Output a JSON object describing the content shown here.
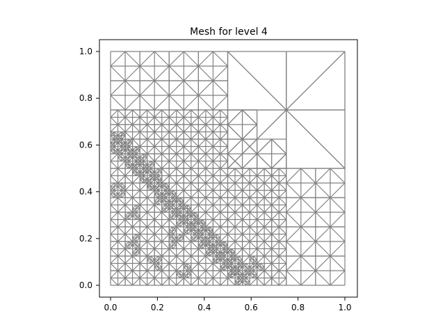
{
  "chart_data": {
    "type": "mesh",
    "title": "Mesh for level 4",
    "xlabel": "",
    "ylabel": "",
    "xlim": [
      -0.05,
      1.05
    ],
    "ylim": [
      -0.05,
      1.05
    ],
    "xticks": [
      "0.0",
      "0.2",
      "0.4",
      "0.6",
      "0.8",
      "1.0"
    ],
    "yticks": [
      "0.0",
      "0.2",
      "0.4",
      "0.6",
      "0.8",
      "1.0"
    ],
    "grid": false,
    "mesh_color": "#808080",
    "domain": [
      [
        0,
        0
      ],
      [
        1,
        0
      ],
      [
        1,
        1
      ],
      [
        0,
        1
      ]
    ],
    "refinement_regions": [
      {
        "region": "coarse",
        "x": [
          0.5,
          1.0
        ],
        "y": [
          0.5,
          1.0
        ],
        "cell": 0.25
      },
      {
        "region": "medium",
        "x": [
          0.0,
          0.5
        ],
        "y": [
          0.75,
          1.0
        ],
        "cell": 0.0625
      },
      {
        "region": "medium",
        "x": [
          0.5,
          1.0
        ],
        "y": [
          0.0,
          0.5
        ],
        "cell": 0.0625
      },
      {
        "region": "medium",
        "x": [
          0.0,
          0.5
        ],
        "y": [
          0.0,
          0.75
        ],
        "cell": 0.0625
      },
      {
        "region": "fine_band",
        "center_line": [
          [
            0.02,
            0.62
          ],
          [
            0.55,
            0.05
          ]
        ],
        "width": 0.1,
        "cell": 0.0156
      }
    ]
  }
}
